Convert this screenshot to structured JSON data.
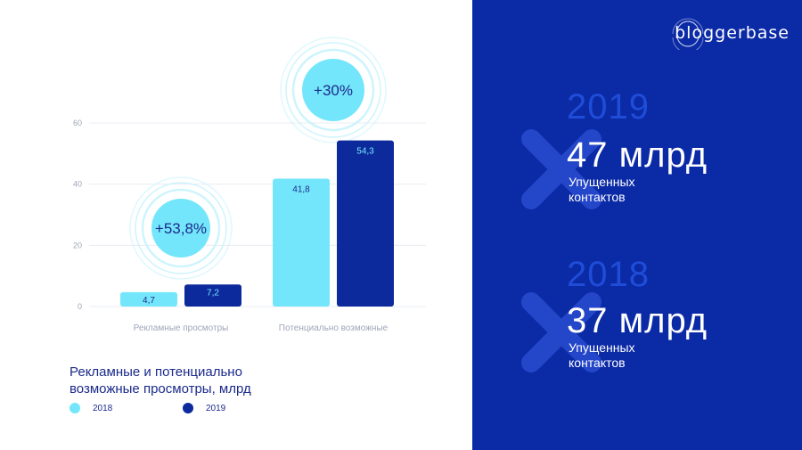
{
  "chart_data": {
    "type": "bar",
    "categories": [
      "Рекламные просмотры",
      "Потенциально возможные"
    ],
    "series": [
      {
        "name": "2018",
        "values": [
          4.7,
          41.8
        ],
        "labels": [
          "4,7",
          "41,8"
        ],
        "color": "#74e6fb"
      },
      {
        "name": "2019",
        "values": [
          7.2,
          54.3
        ],
        "labels": [
          "7,2",
          "54,3"
        ],
        "color": "#0d2a9c"
      }
    ],
    "yticks": [
      "0",
      "20",
      "40",
      "60"
    ],
    "ylim": [
      0,
      60
    ],
    "grid": true,
    "title": "Рекламные и потенциально возможные просмотры, млрд",
    "title_lines": [
      "Рекламные и потенциально",
      "возможные просмотры, млрд"
    ],
    "annotations": [
      "+53,8%",
      "+30%"
    ],
    "legend_position": "bottom-left"
  },
  "brand": {
    "name": "bloggerbase"
  },
  "stats": [
    {
      "year": "2019",
      "value": "47 млрд",
      "caption_lines": [
        "Упущенных",
        "контактов"
      ]
    },
    {
      "year": "2018",
      "value": "37 млрд",
      "caption_lines": [
        "Упущенных",
        "контактов"
      ]
    }
  ],
  "colors": {
    "panel": "#0b2aa6",
    "accent_light": "#74e6fb",
    "accent_dark": "#0d2a9c",
    "year_text": "#1f4dd8",
    "cross": "#2446c9"
  }
}
